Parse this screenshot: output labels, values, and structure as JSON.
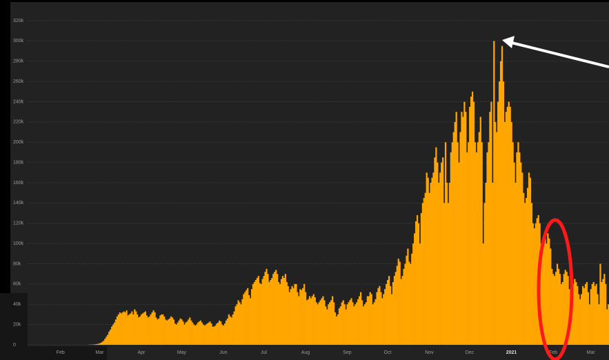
{
  "chart_data": {
    "type": "bar",
    "color": "#ffa600",
    "grid": true,
    "ylim": [
      0,
      320
    ],
    "yticks": [
      0,
      {
        "value": 20,
        "label": "20k"
      },
      {
        "value": 40,
        "label": "40k"
      },
      {
        "value": 60,
        "label": "60k"
      },
      {
        "value": 80,
        "label": "80k"
      },
      {
        "value": 100,
        "label": "100k"
      },
      {
        "value": 120,
        "label": "120k"
      },
      {
        "value": 140,
        "label": "140k"
      },
      {
        "value": 160,
        "label": "160k"
      },
      {
        "value": 180,
        "label": "180k"
      },
      {
        "value": 200,
        "label": "200k"
      },
      {
        "value": 220,
        "label": "220k"
      },
      {
        "value": 240,
        "label": "240k"
      },
      {
        "value": 260,
        "label": "260k"
      },
      {
        "value": 280,
        "label": "280k"
      },
      {
        "value": 300,
        "label": "300k"
      },
      {
        "value": 320,
        "label": "320k"
      }
    ],
    "categories": [
      null,
      null,
      null,
      null,
      null,
      null,
      null,
      null,
      null,
      null,
      null,
      null,
      null,
      null,
      null,
      null,
      null,
      null,
      null,
      null,
      null,
      null,
      null,
      null,
      "Feb",
      null,
      null,
      null,
      null,
      null,
      null,
      null,
      null,
      null,
      null,
      null,
      null,
      null,
      null,
      null,
      null,
      null,
      null,
      null,
      null,
      null,
      null,
      null,
      null,
      null,
      null,
      null,
      null,
      "Mar",
      null,
      null,
      null,
      null,
      null,
      null,
      null,
      null,
      null,
      null,
      null,
      null,
      null,
      null,
      null,
      null,
      null,
      null,
      null,
      null,
      null,
      null,
      null,
      null,
      null,
      null,
      null,
      null,
      null,
      null,
      "Apr",
      null,
      null,
      null,
      null,
      null,
      null,
      null,
      null,
      null,
      null,
      null,
      null,
      null,
      null,
      null,
      null,
      null,
      null,
      null,
      null,
      null,
      null,
      null,
      null,
      null,
      null,
      null,
      null,
      null,
      "May",
      null,
      null,
      null,
      null,
      null,
      null,
      null,
      null,
      null,
      null,
      null,
      null,
      null,
      null,
      null,
      null,
      null,
      null,
      null,
      null,
      null,
      null,
      null,
      null,
      null,
      null,
      null,
      null,
      null,
      null,
      "Jun",
      null,
      null,
      null,
      null,
      null,
      null,
      null,
      null,
      null,
      null,
      null,
      null,
      null,
      null,
      null,
      null,
      null,
      null,
      null,
      null,
      null,
      null,
      null,
      null,
      null,
      null,
      null,
      null,
      null,
      "Jul",
      null,
      null,
      null,
      null,
      null,
      null,
      null,
      null,
      null,
      null,
      null,
      null,
      null,
      null,
      null,
      null,
      null,
      null,
      null,
      null,
      null,
      null,
      null,
      null,
      null,
      null,
      null,
      null,
      null,
      null,
      "Aug",
      null,
      null,
      null,
      null,
      null,
      null,
      null,
      null,
      null,
      null,
      null,
      null,
      null,
      null,
      null,
      null,
      null,
      null,
      null,
      null,
      null,
      null,
      null,
      null,
      null,
      null,
      null,
      null,
      null,
      null,
      "Sep",
      null,
      null,
      null,
      null,
      null,
      null,
      null,
      null,
      null,
      null,
      null,
      null,
      null,
      null,
      null,
      null,
      null,
      null,
      null,
      null,
      null,
      null,
      null,
      null,
      null,
      null,
      null,
      null,
      null,
      "Oct",
      null,
      null,
      null,
      null,
      null,
      null,
      null,
      null,
      null,
      null,
      null,
      null,
      null,
      null,
      null,
      null,
      null,
      null,
      null,
      null,
      null,
      null,
      null,
      null,
      null,
      null,
      null,
      null,
      null,
      null,
      "Nov",
      null,
      null,
      null,
      null,
      null,
      null,
      null,
      null,
      null,
      null,
      null,
      null,
      null,
      null,
      null,
      null,
      null,
      null,
      null,
      null,
      null,
      null,
      null,
      null,
      null,
      null,
      null,
      null,
      null,
      "Dec",
      null,
      null,
      null,
      null,
      null,
      null,
      null,
      null,
      null,
      null,
      null,
      null,
      null,
      null,
      null,
      null,
      null,
      null,
      null,
      null,
      null,
      null,
      null,
      null,
      null,
      null,
      null,
      null,
      null,
      null,
      "2021",
      null,
      null,
      null,
      null,
      null,
      null,
      null,
      null,
      null,
      null,
      null,
      null,
      null,
      null,
      null,
      null,
      null,
      null,
      null,
      null,
      null,
      null,
      null,
      null,
      null,
      null,
      null,
      null,
      null,
      null,
      "Feb",
      null,
      null,
      null,
      null,
      null,
      null,
      null,
      null,
      null,
      null,
      null,
      null,
      null,
      null,
      null,
      null,
      null,
      null,
      null,
      null,
      null,
      null,
      null,
      null,
      null,
      null,
      null,
      "Mar",
      null,
      null,
      null,
      null,
      null,
      null,
      null,
      null,
      null,
      null,
      null,
      null,
      null
    ],
    "values": [
      0,
      0,
      0,
      0,
      0,
      0,
      0,
      0,
      0,
      0,
      0,
      0,
      0,
      0,
      0,
      0,
      0,
      0,
      0,
      0,
      0,
      0,
      0,
      0,
      0,
      0,
      0,
      0,
      0,
      0,
      0,
      0,
      0,
      0,
      0,
      0,
      0,
      0,
      0,
      0,
      0,
      0,
      0,
      0,
      0,
      0.1,
      0.2,
      0.2,
      0.3,
      0.4,
      0.6,
      0.8,
      1,
      1.5,
      2,
      3,
      4,
      6,
      8,
      10,
      13,
      15,
      18,
      20,
      22,
      25,
      28,
      30,
      32,
      31,
      32,
      33,
      32,
      34,
      29,
      30,
      31,
      33,
      30,
      35,
      33,
      30,
      27,
      28,
      30,
      31,
      32,
      33,
      29,
      27,
      28,
      30,
      32,
      34,
      32,
      27,
      25,
      26,
      29,
      30,
      30,
      28,
      25,
      24,
      25,
      26,
      28,
      27,
      25,
      21,
      20,
      22,
      24,
      26,
      25,
      23,
      20,
      22,
      23,
      25,
      27,
      24,
      22,
      20,
      19,
      20,
      22,
      23,
      24,
      22,
      20,
      19,
      20,
      21,
      22,
      23,
      21,
      18,
      18,
      19,
      21,
      22,
      24,
      23,
      20,
      19,
      21,
      24,
      26,
      30,
      28,
      27,
      30,
      33,
      38,
      40,
      44,
      42,
      40,
      45,
      50,
      52,
      54,
      56,
      49,
      46,
      55,
      60,
      62,
      64,
      66,
      68,
      61,
      60,
      65,
      68,
      72,
      75,
      70,
      62,
      64,
      66,
      70,
      72,
      74,
      70,
      62,
      60,
      65,
      68,
      66,
      70,
      62,
      58,
      52,
      55,
      58,
      56,
      60,
      60,
      52,
      48,
      55,
      54,
      56,
      60,
      52,
      44,
      45,
      48,
      46,
      48,
      50,
      47,
      42,
      40,
      42,
      44,
      46,
      48,
      44,
      38,
      35,
      40,
      42,
      44,
      48,
      42,
      32,
      28,
      30,
      36,
      38,
      42,
      44,
      40,
      35,
      40,
      42,
      44,
      46,
      42,
      38,
      40,
      42,
      45,
      48,
      52,
      44,
      38,
      40,
      42,
      48,
      48,
      52,
      50,
      40,
      42,
      45,
      52,
      56,
      58,
      52,
      46,
      50,
      55,
      60,
      64,
      68,
      58,
      50,
      62,
      68,
      72,
      78,
      85,
      82,
      65,
      68,
      75,
      80,
      88,
      95,
      82,
      80,
      90,
      100,
      110,
      122,
      128,
      120,
      100,
      130,
      140,
      145,
      150,
      170,
      165,
      150,
      160,
      165,
      170,
      185,
      195,
      180,
      160,
      170,
      180,
      185,
      140,
      200,
      160,
      140,
      160,
      190,
      200,
      210,
      220,
      230,
      200,
      180,
      210,
      230,
      225,
      240,
      230,
      190,
      200,
      235,
      245,
      250,
      240,
      200,
      190,
      200,
      210,
      225,
      200,
      100,
      140,
      160,
      190,
      200,
      230,
      240,
      160,
      300,
      220,
      210,
      240,
      260,
      280,
      295,
      260,
      220,
      230,
      235,
      240,
      235,
      220,
      200,
      180,
      160,
      190,
      200,
      190,
      180,
      170,
      150,
      140,
      145,
      155,
      170,
      165,
      140,
      120,
      115,
      120,
      125,
      128,
      120,
      100,
      95,
      100,
      105,
      100,
      110,
      105,
      95,
      75,
      70,
      68,
      72,
      80,
      75,
      70,
      60,
      62,
      70,
      74,
      72,
      68,
      55,
      48,
      55,
      60,
      65,
      62,
      58,
      50,
      45,
      50,
      58,
      56,
      60,
      62,
      52,
      40,
      55,
      60,
      62,
      58,
      60,
      50,
      40,
      80,
      62,
      65,
      70,
      60,
      35,
      40
    ]
  }
}
